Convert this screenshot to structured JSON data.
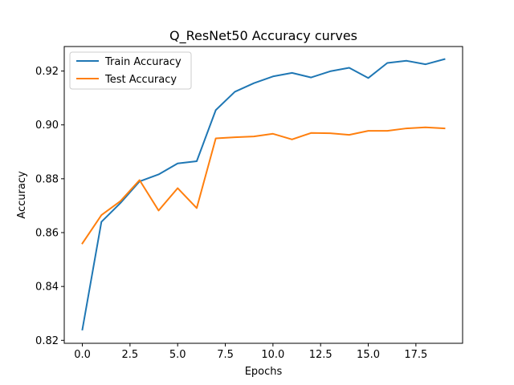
{
  "chart_data": {
    "type": "line",
    "title": "Q_ResNet50 Accuracy curves",
    "xlabel": "Epochs",
    "ylabel": "Accuracy",
    "xlim": [
      -0.95,
      19.95
    ],
    "ylim": [
      0.8189,
      0.9291
    ],
    "xticks": [
      0.0,
      2.5,
      5.0,
      7.5,
      10.0,
      12.5,
      15.0,
      17.5
    ],
    "xtick_labels": [
      "0.0",
      "2.5",
      "5.0",
      "7.5",
      "10.0",
      "12.5",
      "15.0",
      "17.5"
    ],
    "yticks": [
      0.82,
      0.84,
      0.86,
      0.88,
      0.9,
      0.92
    ],
    "ytick_labels": [
      "0.82",
      "0.84",
      "0.86",
      "0.88",
      "0.90",
      "0.92"
    ],
    "grid": false,
    "legend_position": "top-left",
    "x": [
      0,
      1,
      2,
      3,
      4,
      5,
      6,
      7,
      8,
      9,
      10,
      11,
      12,
      13,
      14,
      15,
      16,
      17,
      18,
      19
    ],
    "series": [
      {
        "name": "Train Accuracy",
        "color": "#1f77b4",
        "values": [
          0.824,
          0.864,
          0.871,
          0.879,
          0.8816,
          0.8857,
          0.8865,
          0.9055,
          0.9123,
          0.9155,
          0.918,
          0.9193,
          0.9176,
          0.9199,
          0.9212,
          0.9174,
          0.923,
          0.9238,
          0.9225,
          0.9244
        ]
      },
      {
        "name": "Test Accuracy",
        "color": "#ff7f0e",
        "values": [
          0.856,
          0.8665,
          0.8717,
          0.8795,
          0.8682,
          0.8765,
          0.8691,
          0.895,
          0.8954,
          0.8957,
          0.8967,
          0.8946,
          0.897,
          0.8969,
          0.8963,
          0.8978,
          0.8978,
          0.8987,
          0.8991,
          0.8987
        ]
      }
    ]
  }
}
